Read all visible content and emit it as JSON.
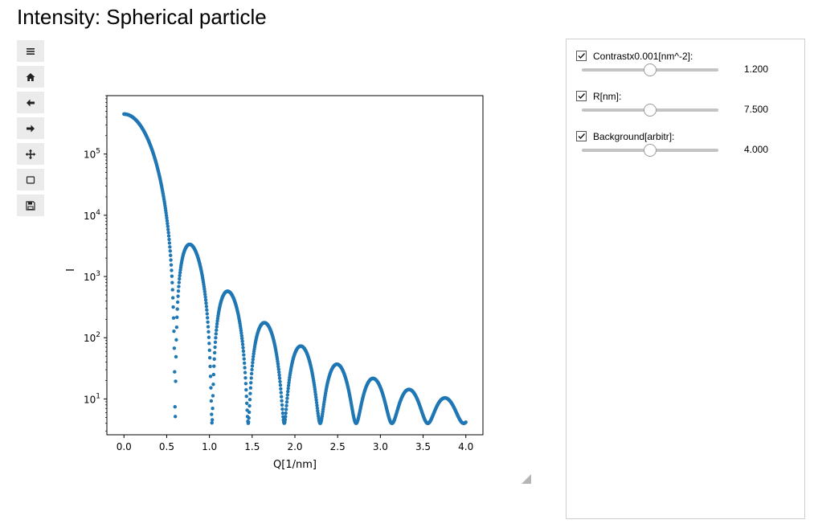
{
  "title": "Intensity: Spherical particle",
  "toolbar": [
    {
      "name": "menu-icon"
    },
    {
      "name": "home-icon"
    },
    {
      "name": "back-arrow-icon"
    },
    {
      "name": "forward-arrow-icon"
    },
    {
      "name": "pan-move-icon"
    },
    {
      "name": "zoom-rect-icon"
    },
    {
      "name": "save-icon"
    }
  ],
  "controls": [
    {
      "label": "Contrastx0.001[nm^-2]:",
      "value": "1.200",
      "checked": true,
      "slider_fraction": 0.5
    },
    {
      "label": "R[nm]:",
      "value": "7.500",
      "checked": true,
      "slider_fraction": 0.5
    },
    {
      "label": "Background[arbitr]:",
      "value": "4.000",
      "checked": true,
      "slider_fraction": 0.5
    }
  ],
  "chart_data": {
    "type": "scatter",
    "xlabel": "Q[1/nm]",
    "ylabel": "I",
    "xlim": [
      -0.2,
      4.2
    ],
    "ylim": [
      2.6,
      900000
    ],
    "yscale": "log",
    "x_ticks": [
      0.0,
      0.5,
      1.0,
      1.5,
      2.0,
      2.5,
      3.0,
      3.5,
      4.0
    ],
    "x_tick_labels": [
      "0.0",
      "0.5",
      "1.0",
      "1.5",
      "2.0",
      "2.5",
      "3.0",
      "3.5",
      "4.0"
    ],
    "y_major_ticks": [
      10,
      100,
      1000,
      10000,
      100000
    ],
    "y_tick_labels": [
      {
        "base": "10",
        "exp": "1"
      },
      {
        "base": "10",
        "exp": "2"
      },
      {
        "base": "10",
        "exp": "3"
      },
      {
        "base": "10",
        "exp": "4"
      },
      {
        "base": "10",
        "exp": "5"
      }
    ],
    "grid": false,
    "marker_color": "#1f77b4",
    "model": {
      "form": "sphere",
      "contrast": 1.2,
      "radius_nm": 7.5,
      "background": 4.0,
      "q_min": 0.0,
      "q_max": 4.0,
      "n_points": 1000
    },
    "series": [
      {
        "x": [
          0.0,
          0.1,
          0.2,
          0.3,
          0.4,
          0.5,
          0.599,
          0.78,
          1.029,
          1.21,
          1.457,
          1.64,
          1.881,
          2.07,
          2.305,
          2.5,
          2.73,
          2.92,
          3.15,
          3.34,
          3.57,
          3.77,
          4.0
        ],
        "y": [
          450000,
          390000,
          240000,
          95000,
          24000,
          3400,
          4,
          3250,
          4,
          570,
          4,
          175,
          4,
          72,
          4,
          36,
          4,
          21,
          4,
          14,
          4,
          10,
          4
        ]
      }
    ]
  }
}
